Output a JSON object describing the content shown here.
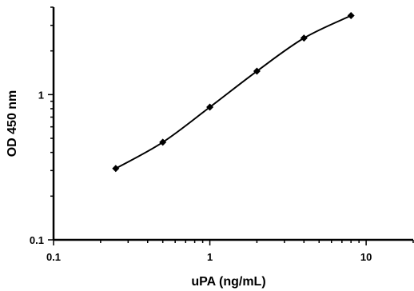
{
  "chart_data": {
    "type": "line",
    "xlabel": "uPA (ng/mL)",
    "ylabel": "OD 450 nm",
    "x_scale": "log",
    "y_scale": "log",
    "xlim": [
      0.1,
      20
    ],
    "ylim": [
      0.1,
      4
    ],
    "x_ticks": [
      {
        "value": 0.1,
        "label": "0.1"
      },
      {
        "value": 1,
        "label": "1"
      },
      {
        "value": 10,
        "label": "10"
      }
    ],
    "y_ticks": [
      {
        "value": 0.1,
        "label": "0.1"
      },
      {
        "value": 1,
        "label": "1"
      }
    ],
    "grid": false,
    "marker": "diamond",
    "series": [
      {
        "x": [
          0.25,
          0.5,
          1,
          2,
          4,
          8
        ],
        "y": [
          0.31,
          0.47,
          0.82,
          1.45,
          2.45,
          3.5
        ]
      }
    ]
  }
}
